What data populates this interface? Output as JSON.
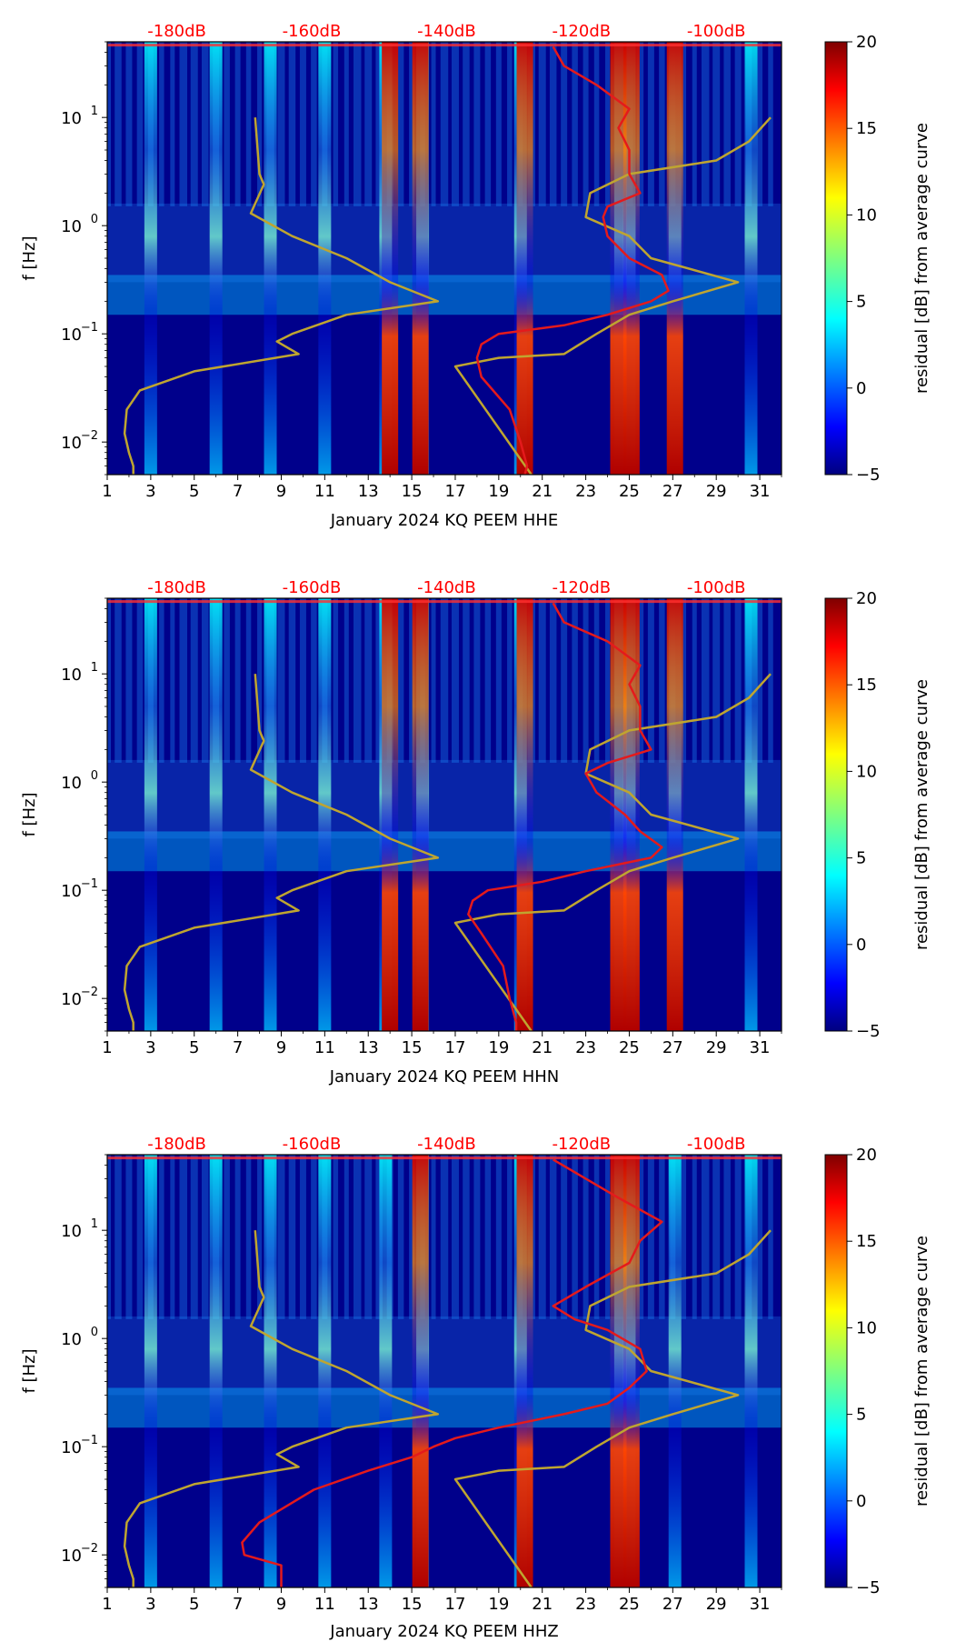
{
  "chart_data": [
    {
      "type": "heatmap",
      "xlabel": "January 2024 KQ PEEM  HHE",
      "ylabel": "f [Hz]",
      "x_ticks": [
        "1",
        "3",
        "5",
        "7",
        "9",
        "11",
        "13",
        "15",
        "17",
        "19",
        "21",
        "23",
        "25",
        "27",
        "29",
        "31"
      ],
      "x_range": [
        1,
        32
      ],
      "y_range": [
        0.005,
        50
      ],
      "y_scale": "log",
      "y_ticks": [
        {
          "value": 10,
          "base": "10",
          "exp": "1"
        },
        {
          "value": 1,
          "base": "10",
          "exp": "0"
        },
        {
          "value": 0.1,
          "base": "10",
          "exp": "−1"
        },
        {
          "value": 0.01,
          "base": "10",
          "exp": "−2"
        }
      ],
      "db_labels": [
        "-180dB",
        "-160dB",
        "-140dB",
        "-120dB",
        "-100dB"
      ],
      "db_positions": [
        4.2,
        10.4,
        16.6,
        22.8,
        29.0
      ],
      "active_days": [
        3,
        6,
        8.5,
        11,
        13.8,
        15.5,
        20,
        24.6,
        25,
        27.1,
        30.6
      ],
      "strong_days": [
        14,
        15.4,
        20.2,
        24.5,
        25.1,
        27.1
      ],
      "red_curve": {
        "color": "#e41a1c",
        "f": [
          45,
          30,
          20,
          12,
          8,
          5,
          3,
          2,
          1.5,
          1.2,
          0.8,
          0.5,
          0.35,
          0.25,
          0.2,
          0.15,
          0.12,
          0.1,
          0.08,
          0.06,
          0.04,
          0.02,
          0.01,
          0.006,
          0.005
        ],
        "day": [
          21.5,
          22,
          23.5,
          25,
          24.5,
          25,
          25,
          25.5,
          24,
          23.8,
          24,
          25,
          26.5,
          26.8,
          26,
          24,
          22,
          19,
          18.2,
          18,
          18.2,
          19.5,
          20,
          20.3,
          20.2
        ]
      },
      "olive_curve": {
        "color": "#bfa530",
        "f": [
          10,
          3,
          2.4,
          1.3,
          0.8,
          0.5,
          0.3,
          0.2,
          0.15,
          0.1,
          0.085,
          0.065,
          0.045,
          0.03,
          0.02,
          0.012,
          0.008,
          0.006,
          0.005
        ],
        "day": [
          7.8,
          8,
          8.2,
          7.6,
          9.5,
          12,
          14,
          16.2,
          12,
          9.5,
          8.8,
          9.8,
          5,
          2.5,
          1.9,
          1.8,
          2,
          2.2,
          2.2
        ]
      },
      "olive_curve_right": {
        "color": "#bfa530",
        "f": [
          0.005,
          0.05,
          0.06,
          0.065,
          0.1,
          0.15,
          0.2,
          0.3,
          0.5,
          0.8,
          1.2,
          2,
          3,
          4,
          6,
          10
        ],
        "day": [
          20.5,
          17,
          19,
          22,
          23.5,
          25,
          27,
          30,
          26,
          25,
          23,
          23.2,
          25,
          29,
          30.5,
          31.5
        ]
      }
    },
    {
      "type": "heatmap",
      "xlabel": "January 2024 KQ PEEM  HHN",
      "ylabel": "f [Hz]",
      "x_ticks": [
        "1",
        "3",
        "5",
        "7",
        "9",
        "11",
        "13",
        "15",
        "17",
        "19",
        "21",
        "23",
        "25",
        "27",
        "29",
        "31"
      ],
      "x_range": [
        1,
        32
      ],
      "y_range": [
        0.005,
        50
      ],
      "y_scale": "log",
      "y_ticks": [
        {
          "value": 10,
          "base": "10",
          "exp": "1"
        },
        {
          "value": 1,
          "base": "10",
          "exp": "0"
        },
        {
          "value": 0.1,
          "base": "10",
          "exp": "−1"
        },
        {
          "value": 0.01,
          "base": "10",
          "exp": "−2"
        }
      ],
      "db_labels": [
        "-180dB",
        "-160dB",
        "-140dB",
        "-120dB",
        "-100dB"
      ],
      "db_positions": [
        4.2,
        10.4,
        16.6,
        22.8,
        29.0
      ],
      "active_days": [
        3,
        6,
        8.5,
        11,
        13.8,
        15.5,
        20,
        24.6,
        25,
        27.1,
        30.6
      ],
      "strong_days": [
        14,
        15.4,
        20.2,
        24.5,
        25.1,
        27.1
      ],
      "red_curve": {
        "color": "#e41a1c",
        "f": [
          45,
          30,
          20,
          12,
          8,
          5,
          3,
          2,
          1.5,
          1.2,
          0.8,
          0.5,
          0.35,
          0.25,
          0.2,
          0.15,
          0.12,
          0.1,
          0.08,
          0.06,
          0.04,
          0.02,
          0.01,
          0.006,
          0.005
        ],
        "day": [
          21.5,
          22,
          24,
          25.5,
          25,
          25.5,
          25.5,
          26,
          24,
          23,
          23.5,
          24.8,
          25.5,
          26.5,
          26,
          23,
          21,
          18.5,
          17.8,
          17.6,
          18.2,
          19.2,
          19.5,
          19.8,
          19.8
        ]
      },
      "olive_curve": {
        "color": "#bfa530",
        "f": [
          10,
          3,
          2.4,
          1.3,
          0.8,
          0.5,
          0.3,
          0.2,
          0.15,
          0.1,
          0.085,
          0.065,
          0.045,
          0.03,
          0.02,
          0.012,
          0.008,
          0.006,
          0.005
        ],
        "day": [
          7.8,
          8,
          8.2,
          7.6,
          9.5,
          12,
          14,
          16.2,
          12,
          9.5,
          8.8,
          9.8,
          5,
          2.5,
          1.9,
          1.8,
          2,
          2.2,
          2.2
        ]
      },
      "olive_curve_right": {
        "color": "#bfa530",
        "f": [
          0.005,
          0.05,
          0.06,
          0.065,
          0.1,
          0.15,
          0.2,
          0.3,
          0.5,
          0.8,
          1.2,
          2,
          3,
          4,
          6,
          10
        ],
        "day": [
          20.5,
          17,
          19,
          22,
          23.5,
          25,
          27,
          30,
          26,
          25,
          23,
          23.2,
          25,
          29,
          30.5,
          31.5
        ]
      }
    },
    {
      "type": "heatmap",
      "xlabel": "January 2024 KQ PEEM  HHZ",
      "ylabel": "f [Hz]",
      "x_ticks": [
        "1",
        "3",
        "5",
        "7",
        "9",
        "11",
        "13",
        "15",
        "17",
        "19",
        "21",
        "23",
        "25",
        "27",
        "29",
        "31"
      ],
      "x_range": [
        1,
        32
      ],
      "y_range": [
        0.005,
        50
      ],
      "y_scale": "log",
      "y_ticks": [
        {
          "value": 10,
          "base": "10",
          "exp": "1"
        },
        {
          "value": 1,
          "base": "10",
          "exp": "0"
        },
        {
          "value": 0.1,
          "base": "10",
          "exp": "−1"
        },
        {
          "value": 0.01,
          "base": "10",
          "exp": "−2"
        }
      ],
      "db_labels": [
        "-180dB",
        "-160dB",
        "-140dB",
        "-120dB",
        "-100dB"
      ],
      "db_positions": [
        4.2,
        10.4,
        16.6,
        22.8,
        29.0
      ],
      "active_days": [
        3,
        6,
        8.5,
        11,
        13.8,
        15.5,
        20,
        24.6,
        25,
        27.1,
        30.6
      ],
      "strong_days": [
        15.4,
        20.2,
        24.5,
        25.1
      ],
      "red_curve": {
        "color": "#e41a1c",
        "f": [
          45,
          30,
          20,
          12,
          8,
          5,
          3,
          2,
          1.5,
          1.2,
          0.8,
          0.5,
          0.35,
          0.25,
          0.2,
          0.15,
          0.12,
          0.1,
          0.08,
          0.06,
          0.04,
          0.02,
          0.013,
          0.01,
          0.008,
          0.005
        ],
        "day": [
          21.5,
          23,
          24.5,
          26.5,
          25.5,
          25,
          23,
          21.5,
          22.5,
          24,
          25.5,
          25.8,
          25,
          24,
          22,
          19,
          17,
          16,
          15,
          13,
          10.5,
          8,
          7.2,
          7.3,
          9,
          9
        ]
      },
      "olive_curve": {
        "color": "#bfa530",
        "f": [
          10,
          3,
          2.4,
          1.3,
          0.8,
          0.5,
          0.3,
          0.2,
          0.15,
          0.1,
          0.085,
          0.065,
          0.045,
          0.03,
          0.02,
          0.012,
          0.008,
          0.006,
          0.005
        ],
        "day": [
          7.8,
          8,
          8.2,
          7.6,
          9.5,
          12,
          14,
          16.2,
          12,
          9.5,
          8.8,
          9.8,
          5,
          2.5,
          1.9,
          1.8,
          2,
          2.2,
          2.2
        ]
      },
      "olive_curve_right": {
        "color": "#bfa530",
        "f": [
          0.005,
          0.05,
          0.06,
          0.065,
          0.1,
          0.15,
          0.2,
          0.3,
          0.5,
          0.8,
          1.2,
          2,
          3,
          4,
          6,
          10
        ],
        "day": [
          20.5,
          17,
          19,
          22,
          23.5,
          25,
          27,
          30,
          26,
          25,
          23,
          23.2,
          25,
          29,
          30.5,
          31.5
        ]
      }
    }
  ],
  "colorbar": {
    "label": "residual [dB] from average curve",
    "ticks": [
      "20",
      "15",
      "10",
      "5",
      "0",
      "−5"
    ],
    "range": [
      -5,
      20
    ],
    "colors": [
      "#00007f",
      "#0000ff",
      "#007fff",
      "#00ffff",
      "#7fff7f",
      "#ffff00",
      "#ff7f00",
      "#ff0000",
      "#7f0000"
    ]
  },
  "colors": {
    "background": "#00008b",
    "db_label": "#ff0000"
  }
}
